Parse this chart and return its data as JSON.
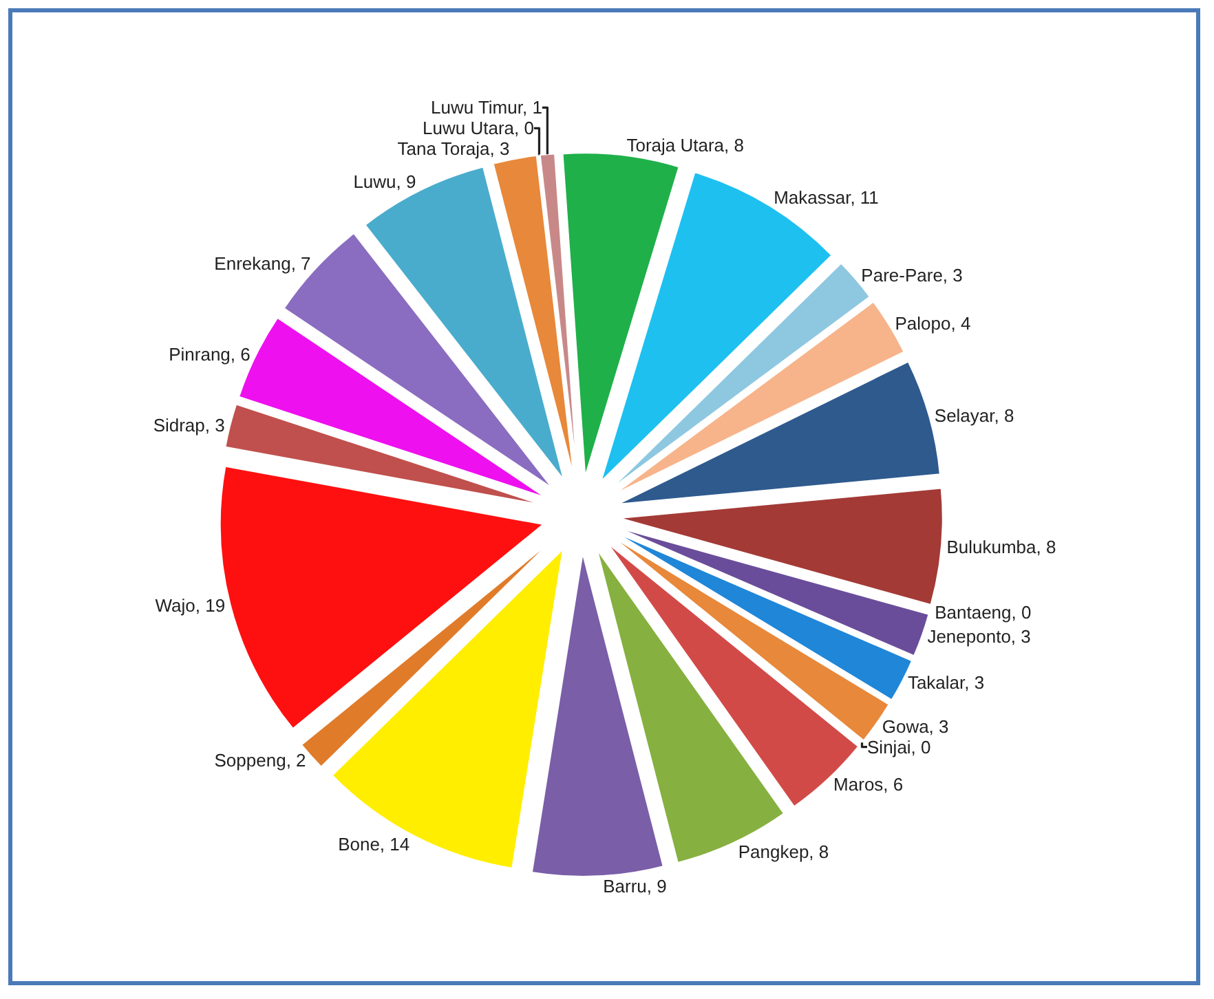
{
  "chart_data": {
    "type": "pie",
    "value_labels": [
      ", 8",
      ", 11",
      ", 3",
      ", 4",
      ", 8",
      ", 8",
      ", 0",
      ", 3",
      ", 3",
      ", 3",
      ", 0",
      ", 6",
      ", 8",
      ", 9",
      ", 14",
      ", 2",
      ", 19",
      ", 3",
      ", 6",
      ", 7",
      ", 9",
      ", 3",
      ", 0",
      ", 1"
    ],
    "categories": [
      "Toraja Utara",
      "Makassar",
      "Pare-Pare",
      "Palopo",
      "Selayar",
      "Bulukumba",
      "Bantaeng",
      "Jeneponto",
      "Takalar",
      "Gowa",
      "Sinjai",
      "Maros",
      "Pangkep",
      "Barru",
      "Bone",
      "Soppeng",
      "Wajo",
      "Sidrap",
      "Pinrang",
      "Enrekang",
      "Luwu",
      "Tana Toraja",
      "Luwu Utara",
      "Luwu Timur"
    ],
    "values": [
      8,
      11,
      3,
      4,
      8,
      8,
      0,
      3,
      3,
      3,
      0,
      6,
      8,
      9,
      14,
      2,
      19,
      3,
      6,
      7,
      9,
      3,
      0,
      1
    ],
    "colors": [
      "#1fb04a",
      "#1ec0f0",
      "#8ec8e0",
      "#f7b48a",
      "#2e5a8e",
      "#a33a36",
      "#7a4f9e",
      "#6a4d9a",
      "#1f86d8",
      "#e8883a",
      "#c04846",
      "#d24a48",
      "#86b040",
      "#7a5ea8",
      "#ffee00",
      "#e07b2a",
      "#ff1010",
      "#c0504d",
      "#ee10ee",
      "#8a6cc0",
      "#4aaccc",
      "#e8883a",
      "#d8a0a0",
      "#c98888"
    ]
  }
}
